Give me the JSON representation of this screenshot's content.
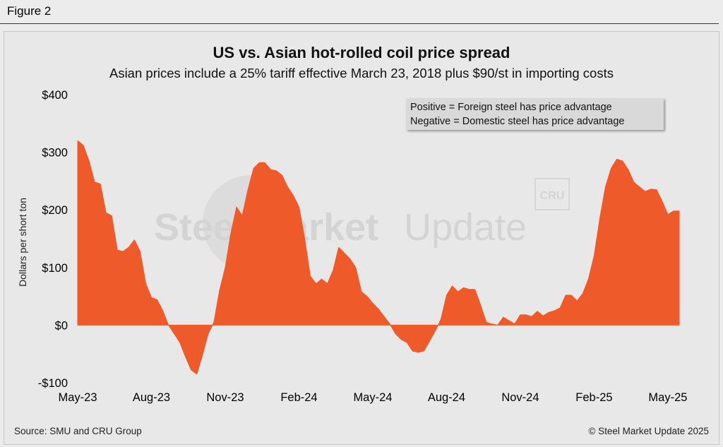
{
  "figure_label": "Figure 2",
  "source": "Source: SMU and CRU Group",
  "copyright": "© Steel Market Update 2025",
  "watermark": {
    "text_bold": "Steel Market",
    "text_light": "Update",
    "badge": "CRU"
  },
  "colors": {
    "series_fill": "#ee5a2a",
    "background": "#e8e8e8"
  },
  "chart_data": {
    "type": "area",
    "title": "US vs. Asian hot-rolled coil price spread",
    "subtitle": "Asian prices include a 25% tariff effective March 23, 2018 plus $90/st in importing costs",
    "ylabel": "Dollars per short ton",
    "xlabel": "",
    "ylim": [
      -100,
      400
    ],
    "yticks": [
      {
        "value": 400,
        "label": "$400"
      },
      {
        "value": 300,
        "label": "$300"
      },
      {
        "value": 200,
        "label": "$200"
      },
      {
        "value": 100,
        "label": "$100"
      },
      {
        "value": 0,
        "label": "$0"
      },
      {
        "value": -100,
        "label": "-$100"
      }
    ],
    "xticks": [
      {
        "index": 0,
        "label": "May-23"
      },
      {
        "index": 13,
        "label": "Aug-23"
      },
      {
        "index": 26,
        "label": "Nov-23"
      },
      {
        "index": 39,
        "label": "Feb-24"
      },
      {
        "index": 52,
        "label": "May-24"
      },
      {
        "index": 65,
        "label": "Aug-24"
      },
      {
        "index": 78,
        "label": "Nov-24"
      },
      {
        "index": 91,
        "label": "Feb-25"
      },
      {
        "index": 104,
        "label": "May-25"
      }
    ],
    "legend": [
      "Positive = Foreign steel has price advantage",
      "Negative = Domestic steel has price advantage"
    ],
    "series": [
      {
        "name": "US vs. Asian HRC price spread",
        "period": "weekly",
        "values": [
          320,
          312,
          285,
          248,
          245,
          195,
          190,
          130,
          128,
          135,
          148,
          128,
          72,
          48,
          44,
          25,
          0,
          -15,
          -30,
          -55,
          -78,
          -85,
          -52,
          -15,
          5,
          60,
          100,
          160,
          205,
          190,
          235,
          272,
          282,
          282,
          270,
          268,
          260,
          240,
          225,
          205,
          150,
          85,
          72,
          80,
          72,
          95,
          135,
          125,
          115,
          100,
          58,
          50,
          38,
          28,
          15,
          2,
          -15,
          -25,
          -30,
          -45,
          -47,
          -45,
          -28,
          -10,
          10,
          52,
          68,
          58,
          65,
          62,
          62,
          35,
          5,
          2,
          0,
          14,
          8,
          2,
          18,
          18,
          15,
          24,
          16,
          22,
          25,
          30,
          52,
          52,
          42,
          55,
          80,
          120,
          185,
          240,
          272,
          288,
          285,
          270,
          248,
          240,
          232,
          236,
          235,
          215,
          192,
          198,
          198
        ]
      }
    ]
  }
}
